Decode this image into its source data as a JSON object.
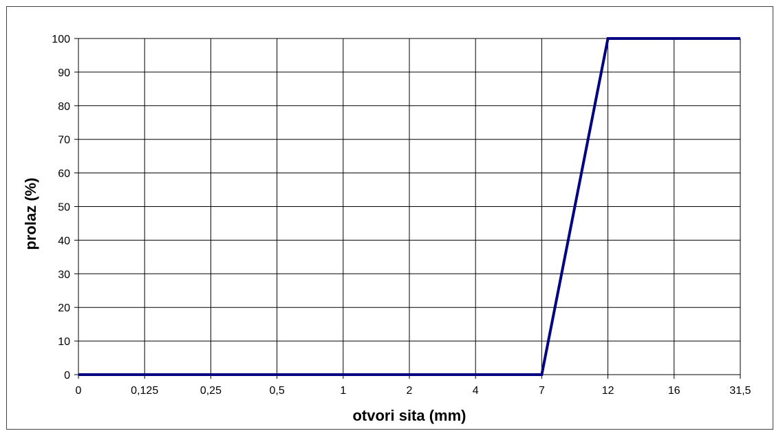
{
  "chart_data": {
    "type": "line",
    "title": "",
    "xlabel": "otvori sita (mm)",
    "ylabel": "prolaz (%)",
    "categories": [
      "0",
      "0,125",
      "0,25",
      "0,5",
      "1",
      "2",
      "4",
      "7",
      "12",
      "16",
      "31,5"
    ],
    "y_ticks": [
      "0",
      "10",
      "20",
      "30",
      "40",
      "50",
      "60",
      "70",
      "80",
      "90",
      "100"
    ],
    "ylim": [
      0,
      100
    ],
    "grid": true,
    "legend": "none",
    "series": [
      {
        "values": [
          0,
          0,
          0,
          0,
          0,
          0,
          0,
          0,
          100,
          100,
          100
        ],
        "color": "#000080"
      }
    ]
  }
}
